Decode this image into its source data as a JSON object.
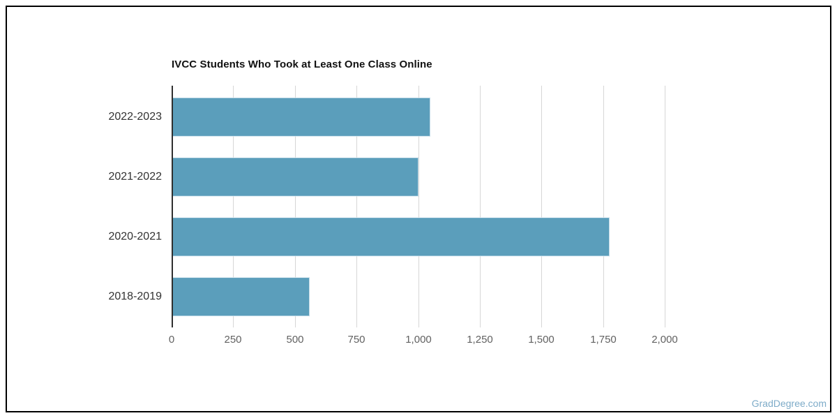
{
  "frame": {
    "border_color": "#000000"
  },
  "watermark": {
    "text": "GradDegree.com",
    "color": "#7dabc8"
  },
  "chart_data": {
    "type": "bar",
    "orientation": "horizontal",
    "title": "IVCC Students Who Took at Least One Class Online",
    "categories": [
      "2022-2023",
      "2021-2022",
      "2020-2021",
      "2018-2019"
    ],
    "values": [
      1045,
      995,
      1770,
      555
    ],
    "xlabel": "",
    "ylabel": "",
    "xlim": [
      0,
      2000
    ],
    "xticks": [
      0,
      250,
      500,
      750,
      1000,
      1250,
      1500,
      1750,
      2000
    ],
    "xtick_labels": [
      "0",
      "250",
      "500",
      "750",
      "1,000",
      "1,250",
      "1,500",
      "1,750",
      "2,000"
    ],
    "grid": true,
    "legend": false,
    "bar_color": "#5b9ebb",
    "bar_edge_color": "#c2dbe8",
    "gridline_color": "#d6d6d6",
    "axis_line_color": "#2e2e2e",
    "tick_label_color": "#616161",
    "category_label_color": "#333333",
    "title_color": "#111111"
  }
}
